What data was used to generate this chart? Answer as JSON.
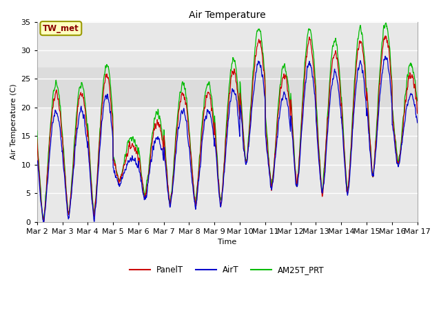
{
  "title": "Air Temperature",
  "ylabel": "Air Temperature (C)",
  "xlabel": "Time",
  "ylim": [
    0,
    35
  ],
  "annotation_text": "TW_met",
  "annotation_color": "#8B0000",
  "annotation_bg": "#FFFFC0",
  "annotation_border": "#999900",
  "line_colors": {
    "PanelT": "#CC0000",
    "AirT": "#0000CC",
    "AM25T_PRT": "#00BB00"
  },
  "shade_band": [
    20,
    27
  ],
  "shade_color": "#DCDCDC",
  "x_tick_labels": [
    "Mar 2",
    "Mar 3",
    "Mar 4",
    "Mar 5",
    "Mar 6",
    "Mar 7",
    "Mar 8",
    "Mar 9",
    "Mar 10",
    "Mar 11",
    "Mar 12",
    "Mar 13",
    "Mar 14",
    "Mar 15",
    "Mar 16",
    "Mar 17"
  ],
  "background_color": "#FFFFFF",
  "plot_bg_color": "#E8E8E8"
}
